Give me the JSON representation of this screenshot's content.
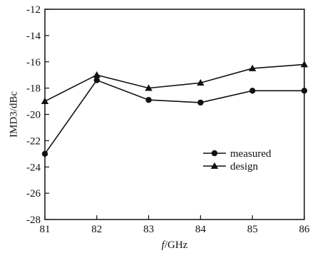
{
  "chart_data": {
    "type": "line",
    "x": [
      81,
      82,
      83,
      84,
      85,
      86
    ],
    "xlim": [
      81,
      86
    ],
    "ylim": [
      -28,
      -12
    ],
    "x_ticks": [
      "81",
      "82",
      "83",
      "84",
      "85",
      "86"
    ],
    "y_ticks": [
      "-12",
      "-14",
      "-16",
      "-18",
      "-20",
      "-22",
      "-24",
      "-26",
      "-28"
    ],
    "xlabel_italic": "f",
    "xlabel_rest": "/GHz",
    "ylabel": "IMD3/dBc",
    "grid": false,
    "legend_position": "center-right",
    "series": [
      {
        "name": "measured",
        "marker": "circle",
        "values": [
          -23.0,
          -17.4,
          -18.9,
          -19.1,
          -18.2,
          -18.2
        ]
      },
      {
        "name": "design",
        "marker": "triangle",
        "values": [
          -19.0,
          -17.0,
          -18.0,
          -17.6,
          -16.5,
          -16.2
        ]
      }
    ],
    "colors": {
      "line": "#111111",
      "axis": "#111111"
    }
  }
}
